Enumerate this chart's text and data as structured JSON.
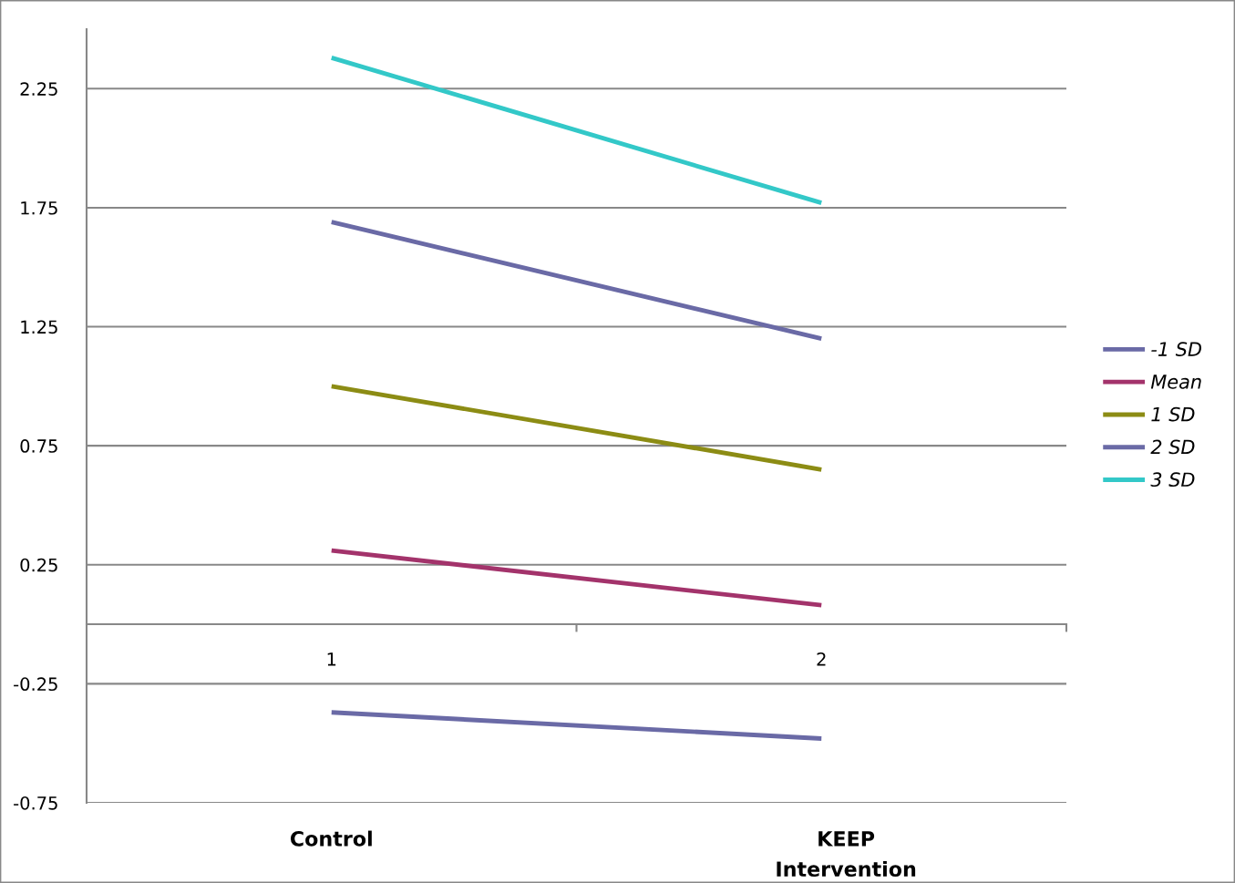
{
  "chart_data": {
    "type": "line",
    "categories": [
      "1",
      "2"
    ],
    "series": [
      {
        "name": "-1 SD",
        "color": "#6a6aa6",
        "values": [
          -0.37,
          -0.48
        ]
      },
      {
        "name": "Mean",
        "color": "#a3336b",
        "values": [
          0.31,
          0.08
        ]
      },
      {
        "name": "1 SD",
        "color": "#8c8c14",
        "values": [
          1.0,
          0.65
        ]
      },
      {
        "name": "2 SD",
        "color": "#6a6aa6",
        "values": [
          1.69,
          1.2
        ]
      },
      {
        "name": "3 SD",
        "color": "#33c8c8",
        "values": [
          2.38,
          1.77
        ]
      }
    ],
    "ylim": [
      -0.75,
      2.5
    ],
    "yticks": [
      -0.75,
      -0.25,
      0.25,
      0.75,
      1.25,
      1.75,
      2.25
    ],
    "grid": "y",
    "legend": "right",
    "marker": "none",
    "line_style": "solid",
    "annotations": [
      "Control",
      "KEEP\nIntervention"
    ]
  }
}
